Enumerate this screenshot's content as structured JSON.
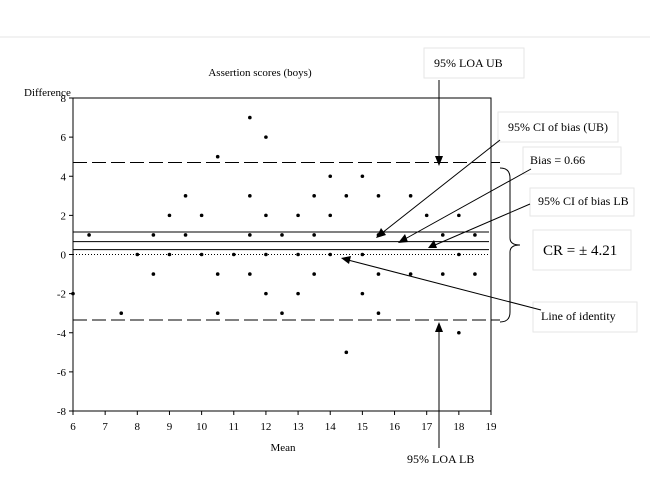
{
  "chart_data": {
    "type": "scatter",
    "title": "Assertion scores (boys)",
    "xlabel": "Mean",
    "ylabel": "Difference",
    "xlim": [
      6,
      19
    ],
    "ylim": [
      -8,
      8
    ],
    "xticks": [
      6,
      7,
      8,
      9,
      10,
      11,
      12,
      13,
      14,
      15,
      16,
      17,
      18,
      19
    ],
    "yticks": [
      -8,
      -6,
      -4,
      -2,
      0,
      2,
      4,
      6,
      8
    ],
    "points": [
      [
        6,
        -2
      ],
      [
        6.5,
        1
      ],
      [
        7.5,
        -3
      ],
      [
        8,
        0
      ],
      [
        8.5,
        1
      ],
      [
        8.5,
        -1
      ],
      [
        9,
        2
      ],
      [
        9,
        0
      ],
      [
        9.5,
        3
      ],
      [
        9.5,
        1
      ],
      [
        10,
        2
      ],
      [
        10,
        0
      ],
      [
        10.5,
        5
      ],
      [
        10.5,
        -1
      ],
      [
        10.5,
        -3
      ],
      [
        11,
        0
      ],
      [
        11.5,
        7
      ],
      [
        11.5,
        3
      ],
      [
        11.5,
        1
      ],
      [
        11.5,
        -1
      ],
      [
        12,
        6
      ],
      [
        12,
        2
      ],
      [
        12,
        0
      ],
      [
        12,
        -2
      ],
      [
        12.5,
        1
      ],
      [
        12.5,
        -3
      ],
      [
        13,
        2
      ],
      [
        13,
        0
      ],
      [
        13,
        -2
      ],
      [
        13.5,
        3
      ],
      [
        13.5,
        1
      ],
      [
        13.5,
        -1
      ],
      [
        14,
        4
      ],
      [
        14,
        2
      ],
      [
        14,
        0
      ],
      [
        14.5,
        3
      ],
      [
        14.5,
        -5
      ],
      [
        15,
        4
      ],
      [
        15,
        0
      ],
      [
        15,
        -2
      ],
      [
        15.5,
        3
      ],
      [
        15.5,
        1
      ],
      [
        15.5,
        -1
      ],
      [
        15.5,
        -3
      ],
      [
        16.5,
        3
      ],
      [
        16.5,
        -1
      ],
      [
        17,
        2
      ],
      [
        17.5,
        1
      ],
      [
        17.5,
        -1
      ],
      [
        18,
        2
      ],
      [
        18,
        0
      ],
      [
        18,
        -4
      ],
      [
        18.5,
        1
      ],
      [
        18.5,
        -1
      ]
    ],
    "lines": {
      "loa_ub": 4.7,
      "ci_bias_ub": 1.15,
      "bias": 0.66,
      "ci_bias_lb": 0.25,
      "identity": 0,
      "loa_lb": -3.35
    },
    "annotations": {
      "loa_ub": "95% LOA UB",
      "ci_bias_ub": "95% CI  of bias (UB)",
      "bias": "Bias = 0.66",
      "ci_bias_lb": "95% CI of bias LB",
      "cr": "CR = ± 4.21",
      "identity": "Line of identity",
      "loa_lb": "95% LOA LB"
    }
  }
}
